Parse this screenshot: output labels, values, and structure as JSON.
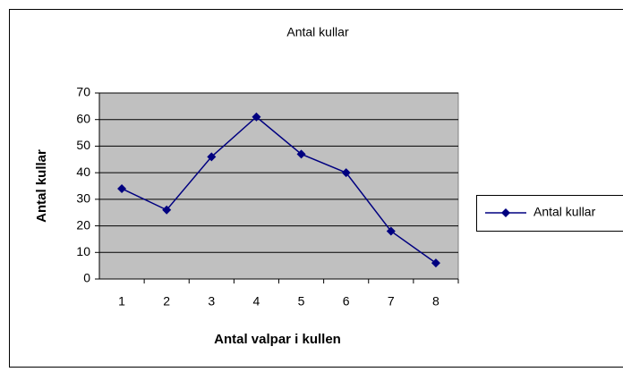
{
  "chart_data": {
    "type": "line",
    "title": "Antal kullar",
    "xlabel": "Antal valpar i kullen",
    "ylabel": "Antal kullar",
    "categories": [
      1,
      2,
      3,
      4,
      5,
      6,
      7,
      8
    ],
    "series": [
      {
        "name": "Antal kullar",
        "color": "#000080",
        "values": [
          34,
          26,
          46,
          61,
          47,
          40,
          18,
          6
        ]
      }
    ],
    "ylim": [
      0,
      70
    ],
    "yticks": [
      0,
      10,
      20,
      30,
      40,
      50,
      60,
      70
    ],
    "grid": true,
    "legend": "right"
  }
}
